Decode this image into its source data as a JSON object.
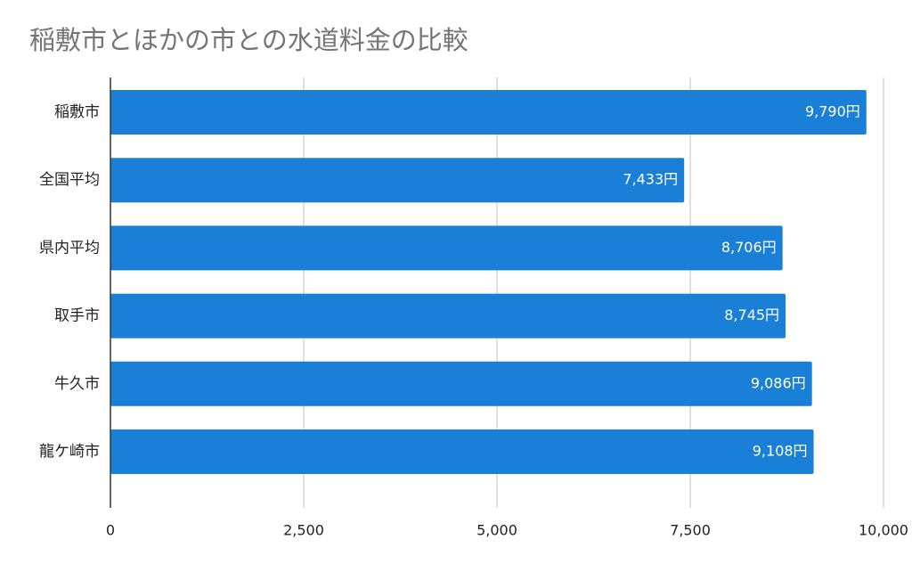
{
  "chart_data": {
    "type": "bar",
    "orientation": "horizontal",
    "title": "稲敷市とほかの市との水道料金の比較",
    "categories": [
      "稲敷市",
      "全国平均",
      "県内平均",
      "取手市",
      "牛久市",
      "龍ケ崎市"
    ],
    "values": [
      9790,
      7433,
      8706,
      8745,
      9086,
      9108
    ],
    "data_labels": [
      "9,790円",
      "7,433円",
      "8,706円",
      "8,745円",
      "9,086円",
      "9,108円"
    ],
    "xlim": [
      0,
      10000
    ],
    "x_ticks": [
      0,
      2500,
      5000,
      7500,
      10000
    ],
    "x_tick_labels": [
      "0",
      "2,500",
      "5,000",
      "7,500",
      "10,000"
    ],
    "grid": true,
    "legend": "none",
    "bar_color": "#1a7fd6",
    "grid_color": "#cccccc",
    "axis_color": "#333333"
  }
}
